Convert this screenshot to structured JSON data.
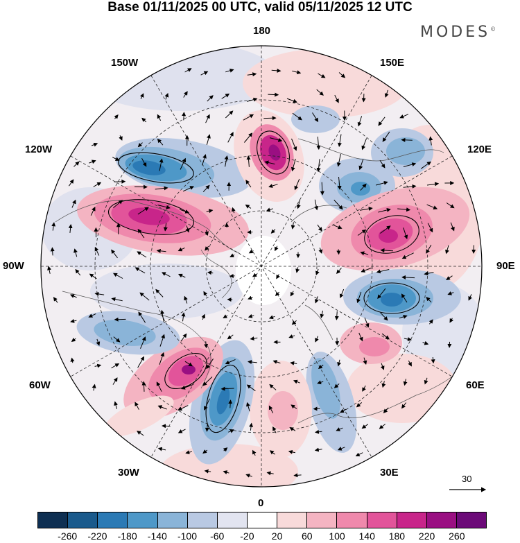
{
  "header": {
    "title": "Base 01/11/2025 00 UTC, valid 05/11/2025 12 UTC",
    "brand": "MODES",
    "brand_mark": "©"
  },
  "map": {
    "projection": "north polar stereographic",
    "lon_labels": {
      "top": "180",
      "bottom": "0",
      "left": "90W",
      "right": "90E",
      "upper_left": "150W",
      "upper_right": "150E",
      "mid_left": "120W",
      "mid_right": "120E",
      "lower_left": "60W",
      "lower_right": "60E",
      "bottom_left": "30W",
      "bottom_right": "30E"
    },
    "vector_scale_label": "30"
  },
  "legend": {
    "colors": [
      "#0e2f52",
      "#1a5a8c",
      "#2b7ab5",
      "#4e98c8",
      "#8ab4d8",
      "#b9c9e3",
      "#e2e4f0",
      "#ffffff",
      "#f8dada",
      "#f4b4c2",
      "#ef89ac",
      "#e2549a",
      "#c8258a",
      "#9a0f82",
      "#6c0a78"
    ],
    "labels": [
      "-260",
      "-220",
      "-180",
      "-140",
      "-100",
      "-60",
      "-20",
      "20",
      "60",
      "100",
      "140",
      "180",
      "220",
      "260"
    ]
  }
}
